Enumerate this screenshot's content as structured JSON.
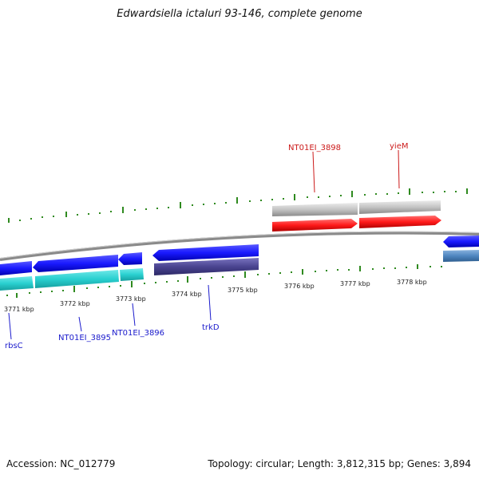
{
  "title": "Edwardsiella ictaluri 93-146, complete genome",
  "footer": {
    "accession": "Accession: NC_012779",
    "info": "Topology: circular; Length: 3,812,315 bp; Genes: 3,894"
  },
  "ticks": [
    "3771 kbp",
    "3772 kbp",
    "3773 kbp",
    "3774 kbp",
    "3775 kbp",
    "3776 kbp",
    "3777 kbp",
    "3778 kbp"
  ],
  "genes": {
    "rbsC": "rbsC",
    "NT01EI_3895": "NT01EI_3895",
    "NT01EI_3896": "NT01EI_3896",
    "trkD": "trkD",
    "NT01EI_3898": "NT01EI_3898",
    "yieM": "yieM"
  },
  "colors": {
    "reverse_cds": "#1a1aff",
    "reverse_gene": "#29d0d0",
    "reverse_gene2": "#4a4490",
    "forward_cds": "#ff1a1a",
    "forward_gene": "#c4c4c4",
    "backbone": "#8a8a8a",
    "gc_skew": "#2f8a1f",
    "label_reverse": "#1a1acc",
    "label_forward": "#cc1a1a",
    "far_right_gene": "#4f86c0"
  }
}
